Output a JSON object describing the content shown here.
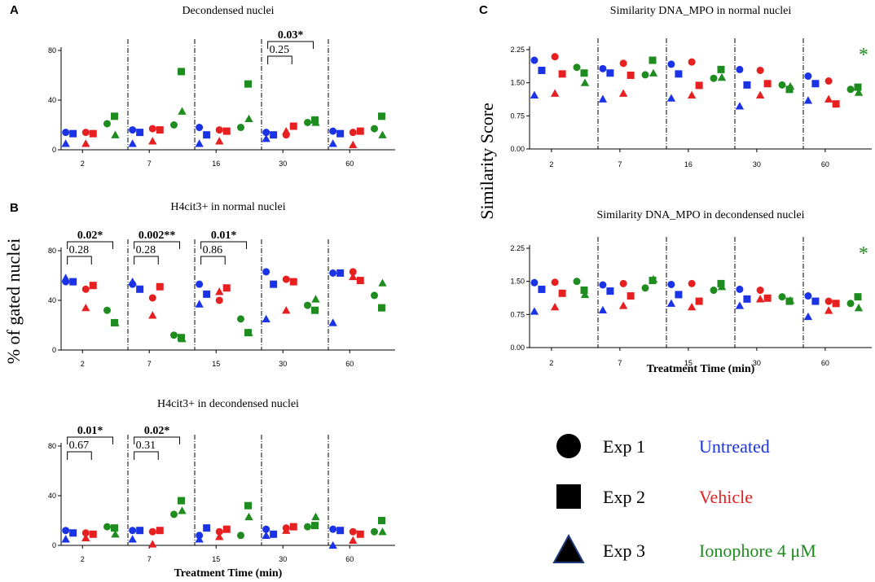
{
  "figure": {
    "ylabel_left": "% of gated nuclei",
    "ylabel_right": "Similarity Score",
    "xlabel": "Treatment Time (min)"
  },
  "colors": {
    "untreated": "#1a33e6",
    "vehicle": "#e62020",
    "ionophore": "#1e8c1e",
    "star": "#1e8c1e"
  },
  "legend": {
    "shapes": [
      {
        "shape": "circle",
        "label": "Exp 1"
      },
      {
        "shape": "square",
        "label": "Exp 2"
      },
      {
        "shape": "triangle",
        "label": "Exp 3"
      }
    ],
    "groups": [
      {
        "key": "untreated",
        "label": "Untreated"
      },
      {
        "key": "vehicle",
        "label": "Vehicle"
      },
      {
        "key": "ionophore",
        "label": "Ionophore 4 μM"
      }
    ]
  },
  "chart_data": [
    {
      "id": "A",
      "panel_letter": "A",
      "type": "scatter",
      "title": "Decondensed nuclei",
      "ylim": [
        0,
        80
      ],
      "yticks": [
        "0",
        "40",
        "80"
      ],
      "categories": [
        "2",
        "7",
        "16",
        "30",
        "60"
      ],
      "series": [
        {
          "group": "untreated",
          "name": "Untreated",
          "values": [
            [
              14,
              13,
              5
            ],
            [
              16,
              14,
              5
            ],
            [
              18,
              12,
              5
            ],
            [
              14,
              12,
              9
            ],
            [
              15,
              13,
              5
            ]
          ]
        },
        {
          "group": "vehicle",
          "name": "Vehicle",
          "values": [
            [
              14,
              13,
              5
            ],
            [
              17,
              16,
              7
            ],
            [
              16,
              15,
              7
            ],
            [
              12,
              19,
              15
            ],
            [
              14,
              15,
              4
            ]
          ]
        },
        {
          "group": "ionophore",
          "name": "Ionophore 4 μM",
          "values": [
            [
              21,
              27,
              12
            ],
            [
              20,
              63,
              31
            ],
            [
              18,
              53,
              25
            ],
            [
              22,
              24,
              22
            ],
            [
              17,
              27,
              12
            ]
          ]
        }
      ],
      "annotations": [
        {
          "category": "30",
          "from": "untreated",
          "to": "vehicle",
          "label": "0.25",
          "bold": false,
          "level": 0
        },
        {
          "category": "30",
          "from": "untreated",
          "to": "ionophore",
          "label": "0.03*",
          "bold": true,
          "level": 1
        }
      ],
      "show_xlabel": false
    },
    {
      "id": "B1",
      "panel_letter": "B",
      "type": "scatter",
      "title": "H4cit3+ in normal nuclei",
      "ylim": [
        0,
        80
      ],
      "yticks": [
        "0",
        "40",
        "80"
      ],
      "categories": [
        "2",
        "7",
        "15",
        "30",
        "60"
      ],
      "series": [
        {
          "group": "untreated",
          "name": "Untreated",
          "values": [
            [
              55,
              55,
              58
            ],
            [
              53,
              49,
              55
            ],
            [
              53,
              45,
              37
            ],
            [
              63,
              53,
              25
            ],
            [
              62,
              62,
              22
            ]
          ]
        },
        {
          "group": "vehicle",
          "name": "Vehicle",
          "values": [
            [
              49,
              52,
              34
            ],
            [
              42,
              51,
              28
            ],
            [
              40,
              50,
              47
            ],
            [
              57,
              55,
              32
            ],
            [
              63,
              56,
              59
            ]
          ]
        },
        {
          "group": "ionophore",
          "name": "Ionophore 4 μM",
          "values": [
            [
              32,
              22,
              22
            ],
            [
              12,
              10,
              9
            ],
            [
              25,
              14,
              14
            ],
            [
              36,
              32,
              41
            ],
            [
              44,
              34,
              54
            ]
          ]
        }
      ],
      "annotations": [
        {
          "category": "2",
          "from": "untreated",
          "to": "vehicle",
          "label": "0.28",
          "bold": false,
          "level": 0
        },
        {
          "category": "2",
          "from": "untreated",
          "to": "ionophore",
          "label": "0.02*",
          "bold": true,
          "level": 1
        },
        {
          "category": "7",
          "from": "untreated",
          "to": "vehicle",
          "label": "0.28",
          "bold": false,
          "level": 0
        },
        {
          "category": "7",
          "from": "untreated",
          "to": "ionophore",
          "label": "0.002**",
          "bold": true,
          "level": 1
        },
        {
          "category": "15",
          "from": "untreated",
          "to": "vehicle",
          "label": "0.86",
          "bold": false,
          "level": 0
        },
        {
          "category": "15",
          "from": "untreated",
          "to": "ionophore",
          "label": "0.01*",
          "bold": true,
          "level": 1
        }
      ],
      "show_xlabel": false
    },
    {
      "id": "B2",
      "panel_letter": "",
      "type": "scatter",
      "title": "H4cit3+ in decondensed nuclei",
      "ylim": [
        0,
        80
      ],
      "yticks": [
        "0",
        "40",
        "80"
      ],
      "categories": [
        "2",
        "7",
        "15",
        "30",
        "60"
      ],
      "series": [
        {
          "group": "untreated",
          "name": "Untreated",
          "values": [
            [
              12,
              10,
              5
            ],
            [
              12,
              12,
              5
            ],
            [
              8,
              14,
              5
            ],
            [
              13,
              9,
              8
            ],
            [
              13,
              12,
              0
            ]
          ]
        },
        {
          "group": "vehicle",
          "name": "Vehicle",
          "values": [
            [
              10,
              9,
              6
            ],
            [
              11,
              12,
              1
            ],
            [
              11,
              13,
              7
            ],
            [
              14,
              15,
              12
            ],
            [
              11,
              9,
              4
            ]
          ]
        },
        {
          "group": "ionophore",
          "name": "Ionophore 4 μM",
          "values": [
            [
              15,
              14,
              9
            ],
            [
              25,
              36,
              28
            ],
            [
              8,
              32,
              23
            ],
            [
              15,
              16,
              23
            ],
            [
              11,
              20,
              11
            ]
          ]
        }
      ],
      "annotations": [
        {
          "category": "2",
          "from": "untreated",
          "to": "vehicle",
          "label": "0.67",
          "bold": false,
          "level": 0
        },
        {
          "category": "2",
          "from": "untreated",
          "to": "ionophore",
          "label": "0.01*",
          "bold": true,
          "level": 1
        },
        {
          "category": "7",
          "from": "untreated",
          "to": "vehicle",
          "label": "0.31",
          "bold": false,
          "level": 0
        },
        {
          "category": "7",
          "from": "untreated",
          "to": "ionophore",
          "label": "0.02*",
          "bold": true,
          "level": 1
        }
      ],
      "show_xlabel": true
    },
    {
      "id": "C1",
      "panel_letter": "C",
      "type": "scatter",
      "title": "Similarity DNA_MPO in normal nuclei",
      "ylim": [
        0,
        2.25
      ],
      "yticks": [
        "0.00",
        "0.75",
        "1.50",
        "2.25"
      ],
      "categories": [
        "2",
        "7",
        "16",
        "30",
        "60"
      ],
      "series": [
        {
          "group": "untreated",
          "name": "Untreated",
          "values": [
            [
              2.01,
              1.78,
              1.22
            ],
            [
              1.82,
              1.72,
              1.13
            ],
            [
              1.92,
              1.7,
              1.15
            ],
            [
              1.8,
              1.45,
              0.97
            ],
            [
              1.65,
              1.48,
              1.1
            ]
          ]
        },
        {
          "group": "vehicle",
          "name": "Vehicle",
          "values": [
            [
              2.09,
              1.7,
              1.26
            ],
            [
              1.94,
              1.67,
              1.26
            ],
            [
              1.97,
              1.44,
              1.22
            ],
            [
              1.78,
              1.48,
              1.22
            ],
            [
              1.54,
              1.02,
              1.13
            ]
          ]
        },
        {
          "group": "ionophore",
          "name": "Ionophore 4 μM",
          "values": [
            [
              1.85,
              1.72,
              1.5
            ],
            [
              1.68,
              2.01,
              1.72
            ],
            [
              1.6,
              1.8,
              1.62
            ],
            [
              1.45,
              1.35,
              1.42
            ],
            [
              1.35,
              1.4,
              1.28
            ]
          ]
        }
      ],
      "star": {
        "category": "60",
        "label": "*"
      },
      "annotations": [],
      "show_xlabel": false
    },
    {
      "id": "C2",
      "panel_letter": "",
      "type": "scatter",
      "title": "Similarity DNA_MPO in decondensed nuclei",
      "ylim": [
        0,
        2.25
      ],
      "yticks": [
        "0.00",
        "0.75",
        "1.50",
        "2.25"
      ],
      "categories": [
        "2",
        "7",
        "15",
        "30",
        "60"
      ],
      "series": [
        {
          "group": "untreated",
          "name": "Untreated",
          "values": [
            [
              1.47,
              1.32,
              0.82
            ],
            [
              1.42,
              1.28,
              0.85
            ],
            [
              1.43,
              1.2,
              1.0
            ],
            [
              1.32,
              1.1,
              0.95
            ],
            [
              1.17,
              1.05,
              0.7
            ]
          ]
        },
        {
          "group": "vehicle",
          "name": "Vehicle",
          "values": [
            [
              1.48,
              1.23,
              0.92
            ],
            [
              1.45,
              1.17,
              0.95
            ],
            [
              1.45,
              1.05,
              0.92
            ],
            [
              1.3,
              1.12,
              1.1
            ],
            [
              1.05,
              1.0,
              0.84
            ]
          ]
        },
        {
          "group": "ionophore",
          "name": "Ionophore 4 μM",
          "values": [
            [
              1.5,
              1.3,
              1.2
            ],
            [
              1.35,
              1.52,
              1.55
            ],
            [
              1.3,
              1.45,
              1.38
            ],
            [
              1.15,
              1.05,
              1.07
            ],
            [
              1.0,
              1.15,
              0.9
            ]
          ]
        }
      ],
      "star": {
        "category": "60",
        "label": "*"
      },
      "annotations": [],
      "show_xlabel": true
    }
  ]
}
